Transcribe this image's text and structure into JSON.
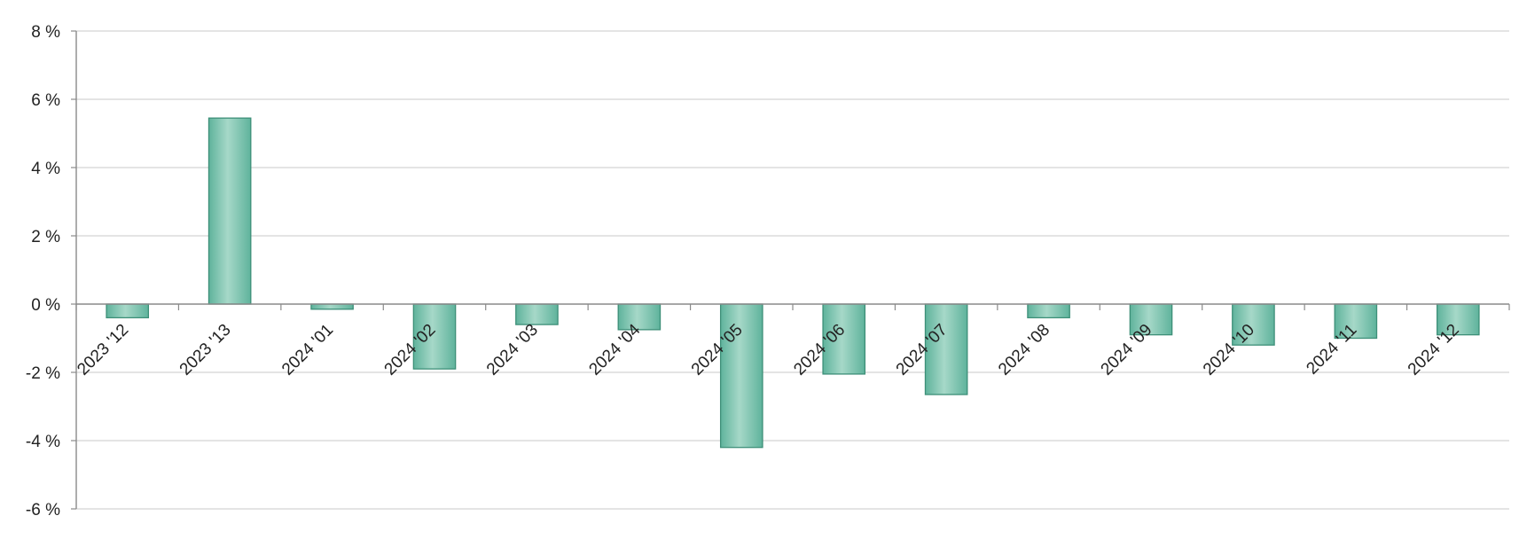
{
  "chart_data": {
    "type": "bar",
    "title": "",
    "xlabel": "",
    "ylabel": "",
    "categories": [
      "2023 '12",
      "2023 '13",
      "2024 '01",
      "2024 '02",
      "2024 '03",
      "2024 '04",
      "2024 '05",
      "2024 '06",
      "2024 '07",
      "2024 '08",
      "2024 '09",
      "2024 '10",
      "2024 '11",
      "2024 '12"
    ],
    "values": [
      -0.4,
      5.45,
      -0.15,
      -1.9,
      -0.6,
      -0.75,
      -4.2,
      -2.05,
      -2.65,
      -0.4,
      -0.9,
      -1.2,
      -1.0,
      -0.9
    ],
    "ylim": [
      -6,
      8
    ],
    "yticks": [
      8,
      6,
      4,
      2,
      0,
      -2,
      -4,
      -6
    ],
    "ytick_labels": [
      "8 %",
      "6 %",
      "4 %",
      "2 %",
      "0 %",
      "-2 %",
      "-4 %",
      "-6 %"
    ],
    "grid": true,
    "legend": "none",
    "colors": {
      "bar_fill_edge": "#5fb39c",
      "bar_fill_center": "#a6d8c8",
      "bar_stroke": "#3d8f78",
      "grid": "#d4d4d4",
      "axis": "#8a8a8a",
      "text": "#222222"
    }
  }
}
